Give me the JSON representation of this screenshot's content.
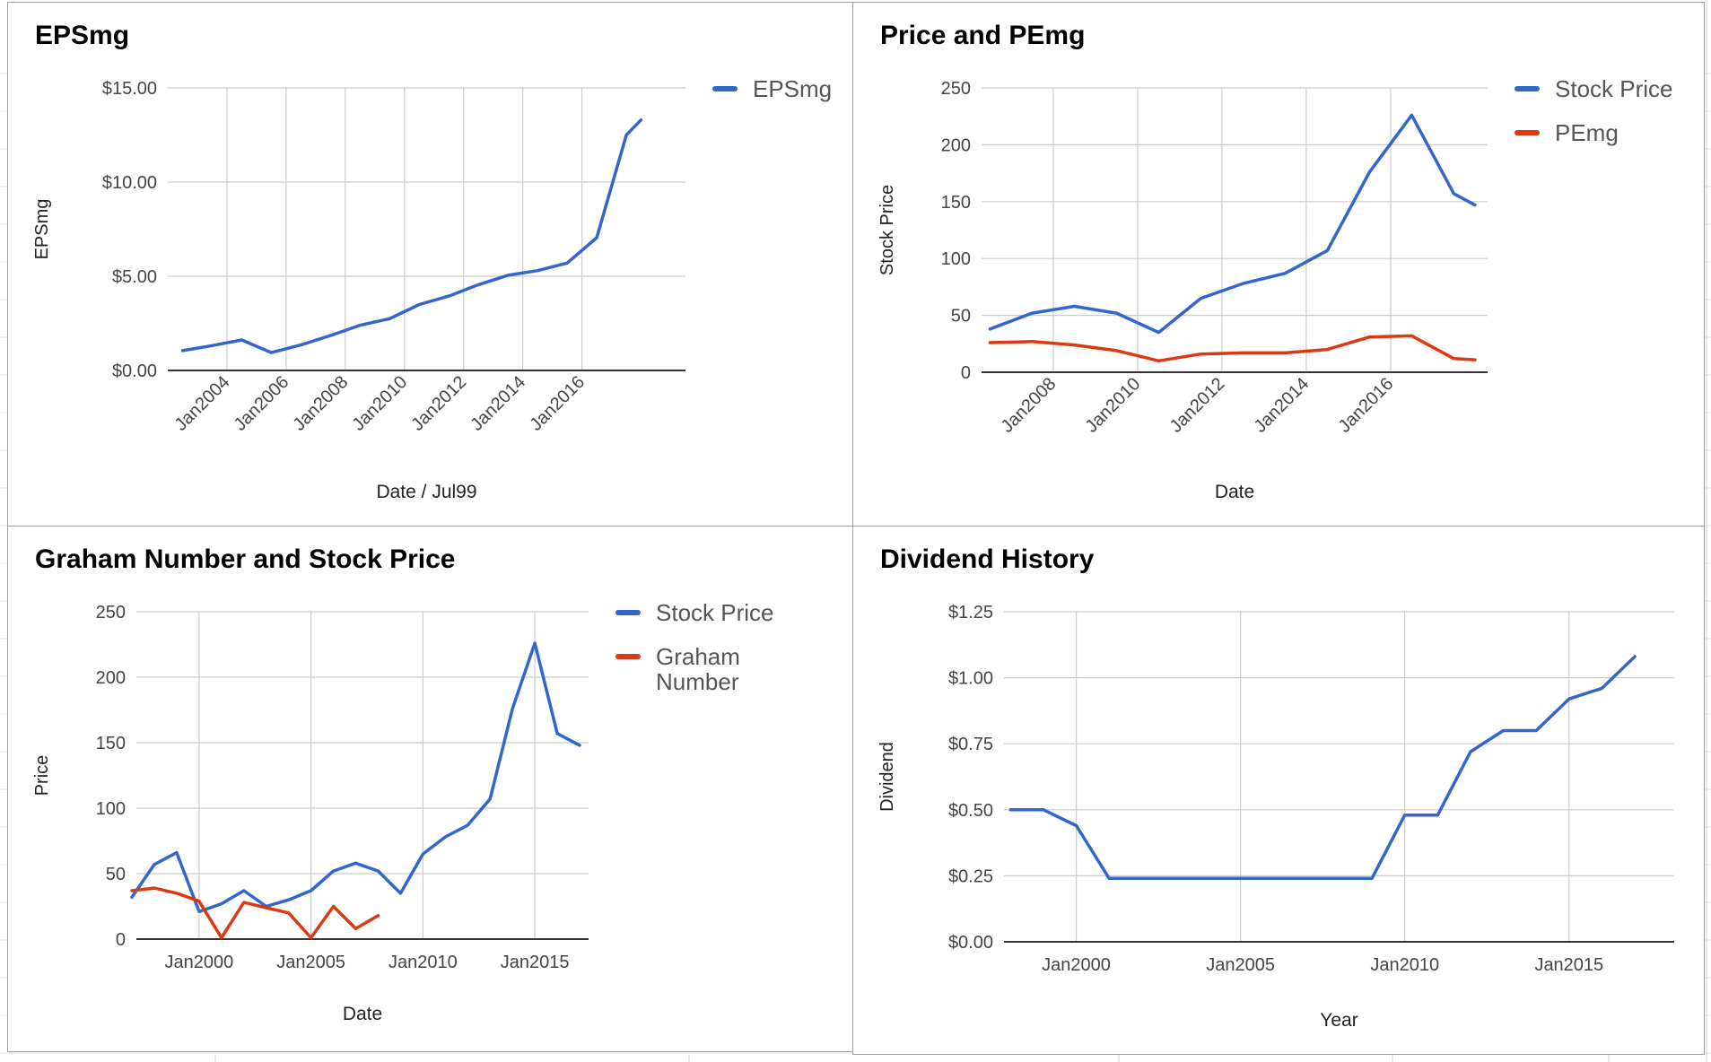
{
  "chart_data": [
    {
      "type": "line",
      "title": "EPSmg",
      "xlabel": "Date / Jul99",
      "ylabel": "EPSmg",
      "x": [
        2002.5,
        2003.5,
        2004.5,
        2005.5,
        2006.5,
        2007.5,
        2008.5,
        2009.5,
        2010.5,
        2011.5,
        2012.5,
        2013.5,
        2014.5,
        2015.5,
        2016.5,
        2017.5,
        2018.0
      ],
      "series": [
        {
          "name": "EPSmg",
          "color": "#3366cc",
          "values": [
            1.05,
            1.32,
            1.62,
            0.95,
            1.35,
            1.85,
            2.4,
            2.75,
            3.5,
            3.95,
            4.55,
            5.05,
            5.3,
            5.7,
            7.05,
            12.5,
            13.3
          ]
        }
      ],
      "xticks": [
        "Jan2004",
        "Jan2006",
        "Jan2008",
        "Jan2010",
        "Jan2012",
        "Jan2014",
        "Jan2016"
      ],
      "xtick_values": [
        2004,
        2006,
        2008,
        2010,
        2012,
        2014,
        2016
      ],
      "xlim": [
        2002.0,
        2019.5
      ],
      "yticks": [
        "$0.00",
        "$5.00",
        "$10.00",
        "$15.00"
      ],
      "ytick_values": [
        0,
        5,
        10,
        15
      ],
      "ylim": [
        0,
        15
      ],
      "grid": true,
      "legend": "right"
    },
    {
      "type": "line",
      "title": "Price and PEmg",
      "xlabel": "Date",
      "ylabel": "Stock Price",
      "x": [
        2006.5,
        2007.5,
        2008.5,
        2009.5,
        2010.5,
        2011.5,
        2012.5,
        2013.5,
        2014.5,
        2015.5,
        2016.5,
        2017.5,
        2018.0
      ],
      "series": [
        {
          "name": "Stock Price",
          "color": "#3366cc",
          "values": [
            38,
            52,
            58,
            52,
            35,
            65,
            78,
            87,
            107,
            176,
            226,
            157,
            147
          ]
        },
        {
          "name": "PEmg",
          "color": "#dc3912",
          "values": [
            26,
            27,
            24,
            19,
            10,
            16,
            17,
            17,
            20,
            31,
            32,
            12,
            11
          ]
        }
      ],
      "xticks": [
        "Jan2008",
        "Jan2010",
        "Jan2012",
        "Jan2014",
        "Jan2016"
      ],
      "xtick_values": [
        2008,
        2010,
        2012,
        2014,
        2016
      ],
      "xlim": [
        2006.3,
        2018.3
      ],
      "yticks": [
        "0",
        "50",
        "100",
        "150",
        "200",
        "250"
      ],
      "ytick_values": [
        0,
        50,
        100,
        150,
        200,
        250
      ],
      "ylim": [
        0,
        250
      ],
      "grid": true,
      "legend": "right"
    },
    {
      "type": "line",
      "title": "Graham Number and Stock Price",
      "xlabel": "Date",
      "ylabel": "Price",
      "series": [
        {
          "name": "Stock Price",
          "color": "#3366cc",
          "x": [
            1997.0,
            1998.0,
            1999.0,
            2000.0,
            2001.0,
            2002.0,
            2003.0,
            2004.0,
            2005.0,
            2006.0,
            2007.0,
            2008.0,
            2009.0,
            2010.0,
            2011.0,
            2012.0,
            2013.0,
            2014.0,
            2015.0,
            2016.0,
            2017.0
          ],
          "values": [
            32,
            57,
            66,
            21,
            27,
            37,
            25,
            30,
            37,
            52,
            58,
            52,
            35,
            65,
            78,
            87,
            107,
            176,
            226,
            157,
            148
          ]
        },
        {
          "name": "Graham Number",
          "color": "#dc3912",
          "x": [
            1997.0,
            1998.0,
            1999.0,
            2000.0,
            2001.0,
            2002.0,
            2003.0,
            2004.0,
            2005.0,
            2006.0,
            2007.0,
            2008.0
          ],
          "values": [
            37,
            39,
            35,
            29,
            1,
            28,
            24,
            20,
            1,
            25,
            8,
            18
          ]
        }
      ],
      "xticks": [
        "Jan2000",
        "Jan2005",
        "Jan2010",
        "Jan2015"
      ],
      "xtick_values": [
        2000,
        2005,
        2010,
        2015
      ],
      "xlim": [
        1997.2,
        2017.4
      ],
      "yticks": [
        "0",
        "50",
        "100",
        "150",
        "200",
        "250"
      ],
      "ytick_values": [
        0,
        50,
        100,
        150,
        200,
        250
      ],
      "ylim": [
        0,
        250
      ],
      "grid": true,
      "legend": "right"
    },
    {
      "type": "line",
      "title": "Dividend History",
      "xlabel": "Year",
      "ylabel": "Dividend",
      "x": [
        1998.0,
        1999.0,
        2000.0,
        2001.0,
        2002.0,
        2003.0,
        2004.0,
        2005.0,
        2006.0,
        2007.0,
        2008.0,
        2009.0,
        2010.0,
        2011.0,
        2012.0,
        2013.0,
        2014.0,
        2015.0,
        2016.0,
        2017.0
      ],
      "series": [
        {
          "name": "Dividend",
          "color": "#3366cc",
          "values": [
            0.5,
            0.5,
            0.44,
            0.24,
            0.24,
            0.24,
            0.24,
            0.24,
            0.24,
            0.24,
            0.24,
            0.24,
            0.48,
            0.48,
            0.72,
            0.8,
            0.8,
            0.92,
            0.96,
            1.08
          ]
        }
      ],
      "xticks": [
        "Jan2000",
        "Jan2005",
        "Jan2010",
        "Jan2015"
      ],
      "xtick_values": [
        2000,
        2005,
        2010,
        2015
      ],
      "xlim": [
        1997.8,
        2018.2
      ],
      "yticks": [
        "$0.00",
        "$0.25",
        "$0.50",
        "$0.75",
        "$1.00",
        "$1.25"
      ],
      "ytick_values": [
        0,
        0.25,
        0.5,
        0.75,
        1.0,
        1.25
      ],
      "ylim": [
        0,
        1.25
      ],
      "grid": true,
      "legend": "none"
    }
  ]
}
